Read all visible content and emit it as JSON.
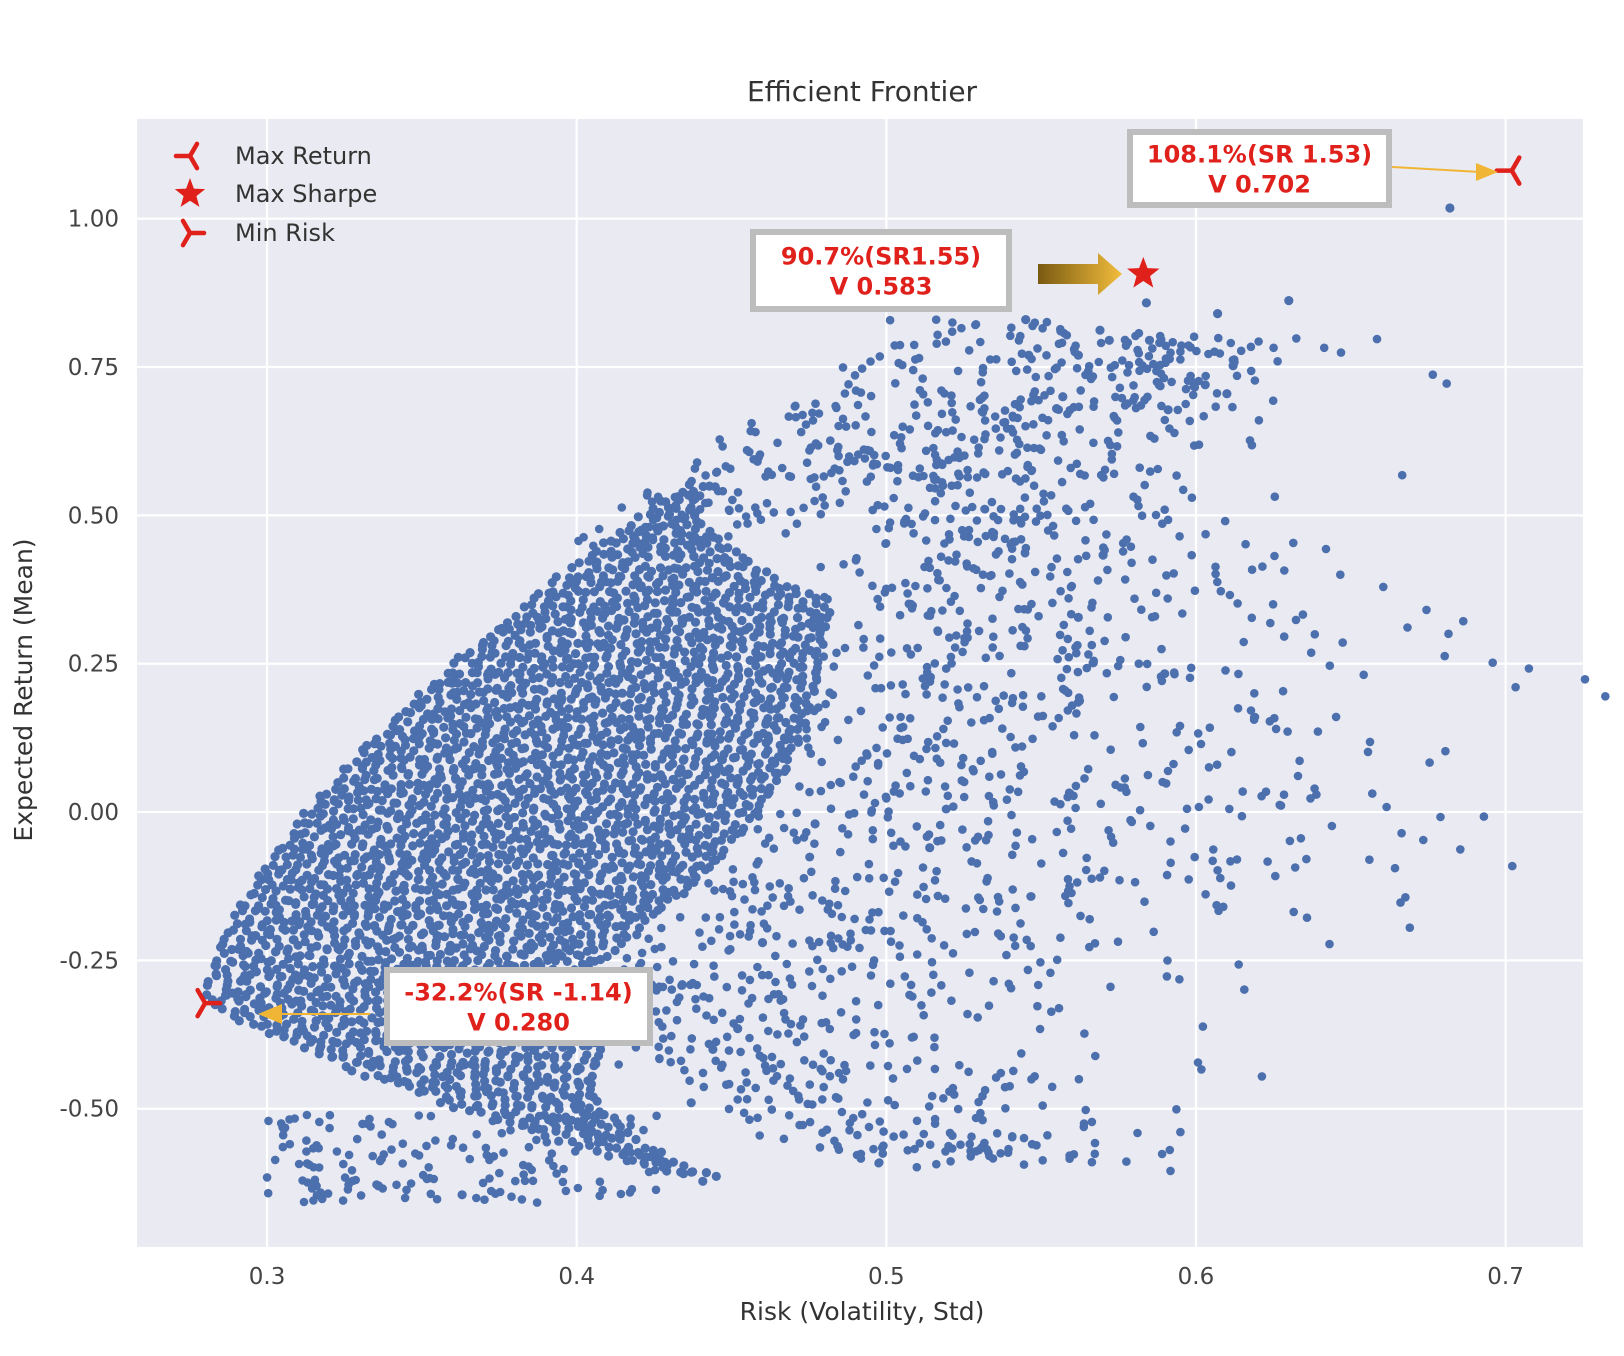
{
  "chart_data": {
    "type": "scatter",
    "title": "Efficient Frontier",
    "xlabel": "Risk (Volatility, Std)",
    "ylabel": "Expected Return (Mean)",
    "xlim": [
      0.258,
      0.725
    ],
    "ylim": [
      -0.733,
      1.168
    ],
    "xticks": [
      "0.3",
      "0.4",
      "0.5",
      "0.6",
      "0.7"
    ],
    "yticks": [
      "-0.50",
      "-0.25",
      "0.00",
      "0.25",
      "0.50",
      "0.75",
      "1.00"
    ],
    "grid": true,
    "background_color": "#EAEAF2",
    "point_color": "#4C6FAD",
    "marker_color": "#E0201B",
    "arrow_color": "#F0B535",
    "cloud_description_points": [
      [
        0.682,
        1.018
      ],
      [
        0.63,
        0.862
      ],
      [
        0.607,
        0.84
      ],
      [
        0.612,
        0.752
      ],
      [
        0.603,
        0.72
      ],
      [
        0.61,
        0.705
      ],
      [
        0.591,
        0.678
      ],
      [
        0.585,
        0.795
      ],
      [
        0.584,
        0.858
      ],
      [
        0.572,
        0.795
      ],
      [
        0.569,
        0.812
      ],
      [
        0.562,
        0.77
      ],
      [
        0.557,
        0.7
      ],
      [
        0.555,
        0.68
      ],
      [
        0.545,
        0.83
      ],
      [
        0.546,
        0.77
      ],
      [
        0.57,
        0.433
      ],
      [
        0.562,
        0.328
      ],
      [
        0.514,
        -0.06
      ],
      [
        0.477,
        -0.02
      ],
      [
        0.46,
        -0.22
      ],
      [
        0.452,
        -0.365
      ],
      [
        0.444,
        -0.4
      ],
      [
        0.437,
        -0.49
      ],
      [
        0.363,
        -0.645
      ],
      [
        0.336,
        -0.63
      ]
    ],
    "special_points": [
      {
        "name": "Max Return",
        "x": 0.702,
        "y": 1.081,
        "sr": 1.53,
        "marker": "tri-left"
      },
      {
        "name": "Max Sharpe",
        "x": 0.583,
        "y": 0.907,
        "sr": 1.55,
        "marker": "star"
      },
      {
        "name": "Min Risk",
        "x": 0.28,
        "y": -0.322,
        "sr": -1.14,
        "marker": "tri-right"
      }
    ],
    "legend": {
      "position": "top-left",
      "entries": [
        "Max Return",
        "Max Sharpe",
        "Min Risk"
      ]
    },
    "annotations": [
      {
        "line1": "108.1%(SR  1.53)",
        "line2": "V 0.702",
        "target": "Max Return"
      },
      {
        "line1": "90.7%(SR1.55)",
        "line2": "V 0.583",
        "target": "Max Sharpe"
      },
      {
        "line1": "-32.2%(SR  -1.14)",
        "line2": "V 0.280",
        "target": "Min Risk"
      }
    ]
  }
}
